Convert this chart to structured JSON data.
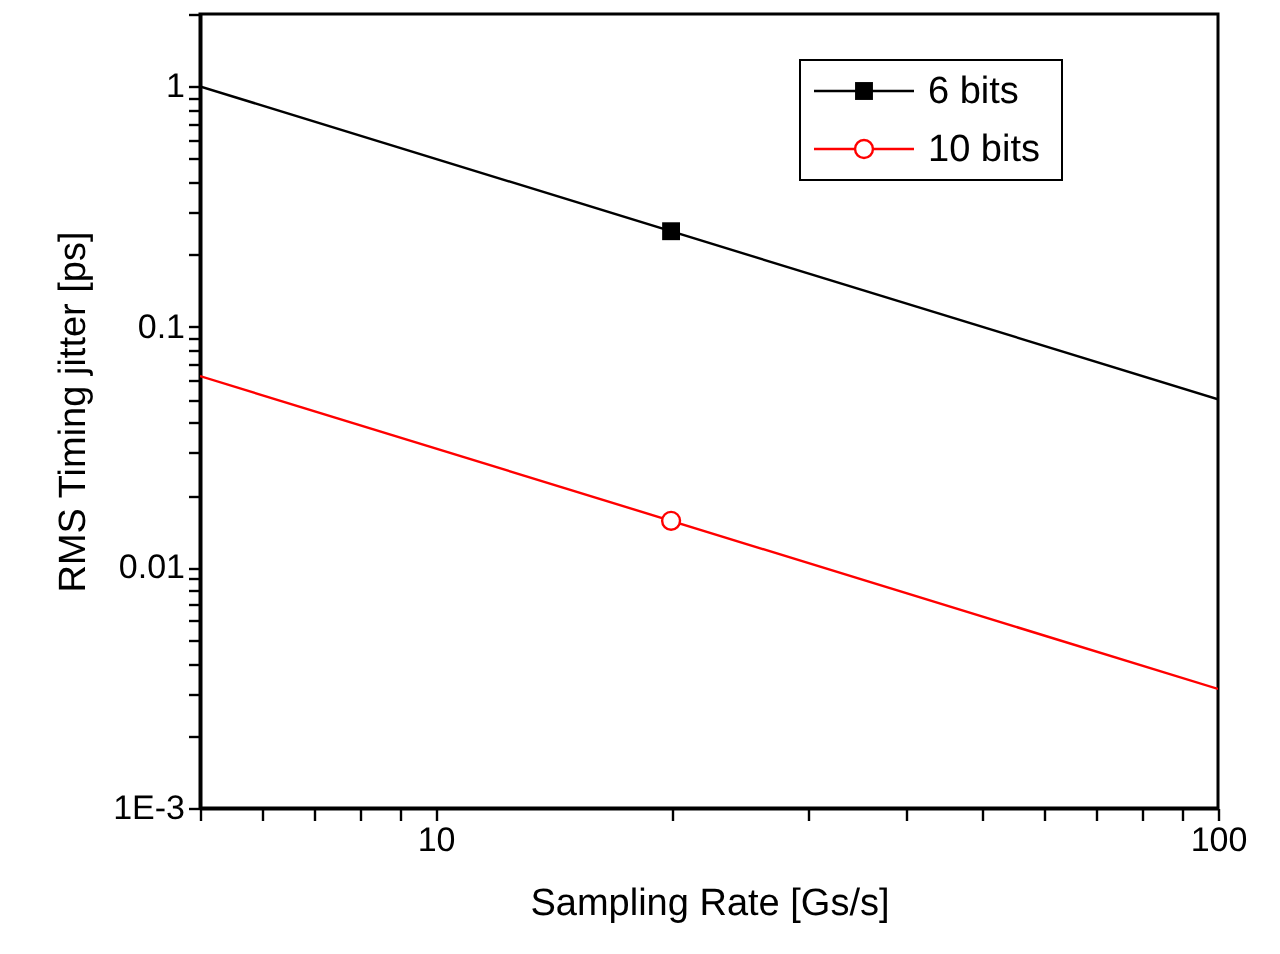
{
  "chart_data": {
    "type": "line",
    "xlabel": "Sampling Rate [Gs/s]",
    "ylabel": "RMS Timing jitter [ps]",
    "log": "xy",
    "xlim": [
      5,
      100
    ],
    "ylim": [
      0.001,
      2
    ],
    "xticks": [
      {
        "value": 5,
        "label": null
      },
      {
        "value": 6,
        "label": null
      },
      {
        "value": 7,
        "label": null
      },
      {
        "value": 8,
        "label": null
      },
      {
        "value": 9,
        "label": null
      },
      10,
      {
        "value": 20,
        "label": null
      },
      {
        "value": 30,
        "label": null
      },
      {
        "value": 40,
        "label": null
      },
      {
        "value": 50,
        "label": null
      },
      {
        "value": 60,
        "label": null
      },
      {
        "value": 70,
        "label": null
      },
      {
        "value": 80,
        "label": null
      },
      {
        "value": 90,
        "label": null
      },
      100
    ],
    "yticks": [
      {
        "value": 0.001,
        "label": "1E-3"
      },
      {
        "value": 0.002,
        "label": null
      },
      {
        "value": 0.003,
        "label": null
      },
      {
        "value": 0.004,
        "label": null
      },
      {
        "value": 0.005,
        "label": null
      },
      {
        "value": 0.006,
        "label": null
      },
      {
        "value": 0.007,
        "label": null
      },
      {
        "value": 0.008,
        "label": null
      },
      {
        "value": 0.009,
        "label": null
      },
      0.01,
      {
        "value": 0.02,
        "label": null
      },
      {
        "value": 0.03,
        "label": null
      },
      {
        "value": 0.04,
        "label": null
      },
      {
        "value": 0.05,
        "label": null
      },
      {
        "value": 0.06,
        "label": null
      },
      {
        "value": 0.07,
        "label": null
      },
      {
        "value": 0.08,
        "label": null
      },
      {
        "value": 0.09,
        "label": null
      },
      0.1,
      {
        "value": 0.2,
        "label": null
      },
      {
        "value": 0.3,
        "label": null
      },
      {
        "value": 0.4,
        "label": null
      },
      {
        "value": 0.5,
        "label": null
      },
      {
        "value": 0.6,
        "label": null
      },
      {
        "value": 0.7,
        "label": null
      },
      {
        "value": 0.8,
        "label": null
      },
      {
        "value": 0.9,
        "label": null
      },
      1,
      {
        "value": 2,
        "label": null
      }
    ],
    "grid": false,
    "legend": "top right",
    "line_style": "solid",
    "series": [
      {
        "type": "line",
        "color": "#000000",
        "x": [
          5,
          100
        ],
        "values": [
          1,
          0.05
        ],
        "marker": "none"
      },
      {
        "type": "scatter",
        "name": "6 bits",
        "color": "#000000",
        "x": [
          20
        ],
        "values": [
          0.25
        ],
        "marker": "square"
      },
      {
        "type": "line",
        "color": "#ff0000",
        "x": [
          5,
          100
        ],
        "values": [
          0.0625,
          0.003125
        ],
        "marker": "none"
      },
      {
        "type": "scatter",
        "name": "10 bits",
        "color": "#ff0000",
        "x": [
          20
        ],
        "values": [
          0.015625
        ],
        "marker": "circle"
      }
    ]
  }
}
